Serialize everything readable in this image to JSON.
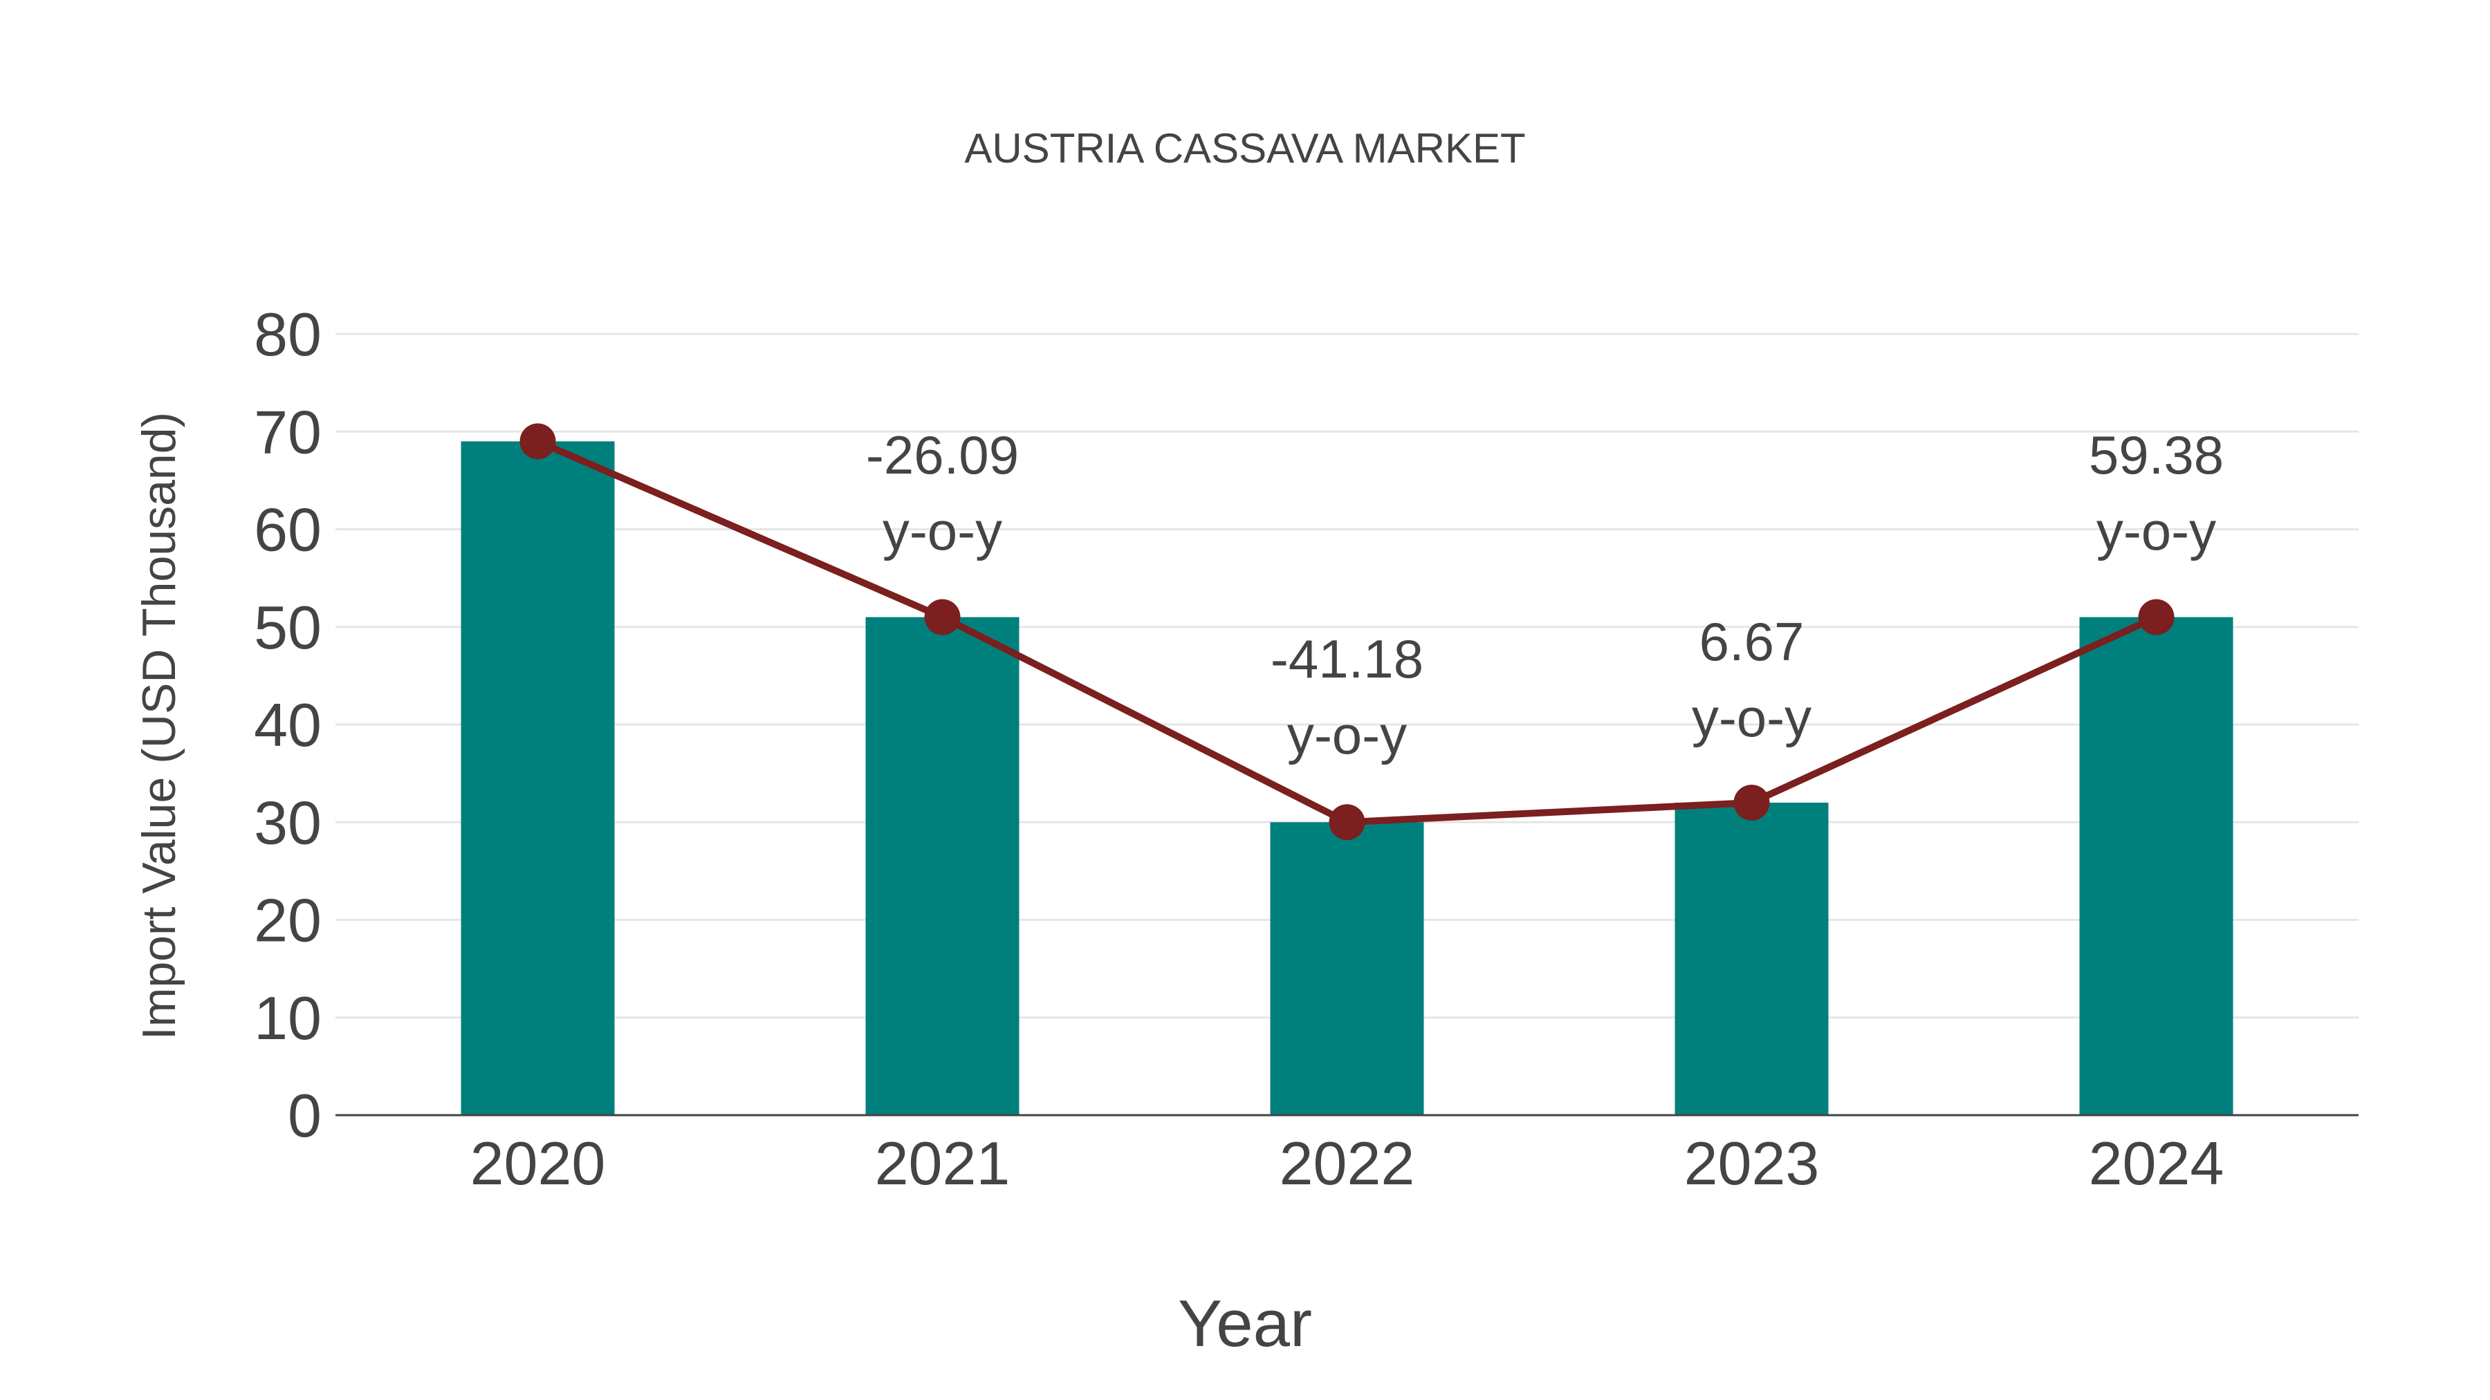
{
  "chart_data": {
    "type": "bar",
    "title": "AUSTRIA CASSAVA MARKET",
    "xlabel": "Year",
    "ylabel": "Import Value (USD Thousand)",
    "categories": [
      "2020",
      "2021",
      "2022",
      "2023",
      "2024"
    ],
    "series": [
      {
        "name": "Import Value",
        "type": "bar",
        "color": "#00807C",
        "values": [
          69,
          51,
          30,
          32,
          51
        ]
      },
      {
        "name": "Trend",
        "type": "line",
        "color": "#7B1F1F",
        "values": [
          69,
          51,
          30,
          32,
          51
        ]
      }
    ],
    "annotations": [
      {
        "category": "2021",
        "value": "-26.09",
        "suffix": "y-o-y"
      },
      {
        "category": "2022",
        "value": "-41.18",
        "suffix": "y-o-y"
      },
      {
        "category": "2023",
        "value": "6.67",
        "suffix": "y-o-y"
      },
      {
        "category": "2024",
        "value": "59.38",
        "suffix": "y-o-y"
      }
    ],
    "yticks": [
      0,
      10,
      20,
      30,
      40,
      50,
      60,
      70,
      80
    ],
    "ylim": [
      0,
      80
    ],
    "grid": true,
    "legend": "none"
  }
}
